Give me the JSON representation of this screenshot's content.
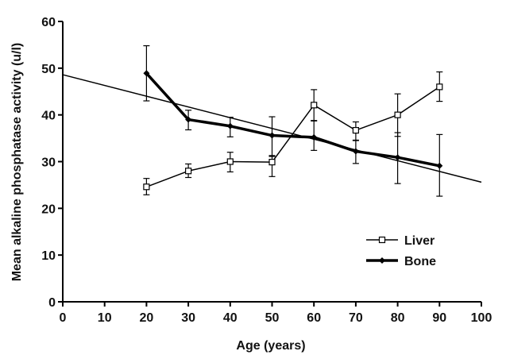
{
  "chart_data": {
    "type": "line",
    "title": "",
    "xlabel": "Age (years)",
    "ylabel": "Mean alkaline phosphatase activity (u/l)",
    "xlim": [
      0,
      100
    ],
    "ylim": [
      0,
      60
    ],
    "x_ticks": [
      0,
      10,
      20,
      30,
      40,
      50,
      60,
      70,
      80,
      90,
      100
    ],
    "y_ticks": [
      0,
      10,
      20,
      30,
      40,
      50,
      60
    ],
    "grid": false,
    "legend_position": "right",
    "x": [
      20,
      30,
      40,
      50,
      60,
      70,
      80,
      90
    ],
    "series": [
      {
        "name": "Liver",
        "marker": "open-square",
        "color": "#000000",
        "values": [
          24.6,
          28.0,
          30.0,
          29.9,
          42.1,
          36.7,
          40.0,
          46.0
        ],
        "err_low": [
          22.9,
          26.6,
          27.8,
          26.8,
          38.7,
          34.6,
          35.4,
          42.9
        ],
        "err_high": [
          26.4,
          29.5,
          32.0,
          31.3,
          45.4,
          38.5,
          44.5,
          49.2
        ]
      },
      {
        "name": "Bone",
        "marker": "filled-diamond",
        "color": "#000000",
        "values": [
          48.9,
          39.0,
          37.6,
          35.6,
          35.2,
          32.2,
          30.9,
          29.1
        ],
        "err_low": [
          43.0,
          36.8,
          35.3,
          31.1,
          32.4,
          29.6,
          25.3,
          22.6
        ],
        "err_high": [
          54.8,
          41.0,
          39.5,
          39.6,
          38.8,
          34.5,
          36.2,
          35.8
        ]
      }
    ],
    "trend_line": {
      "x": [
        0,
        100
      ],
      "y": [
        48.6,
        25.6
      ]
    }
  }
}
